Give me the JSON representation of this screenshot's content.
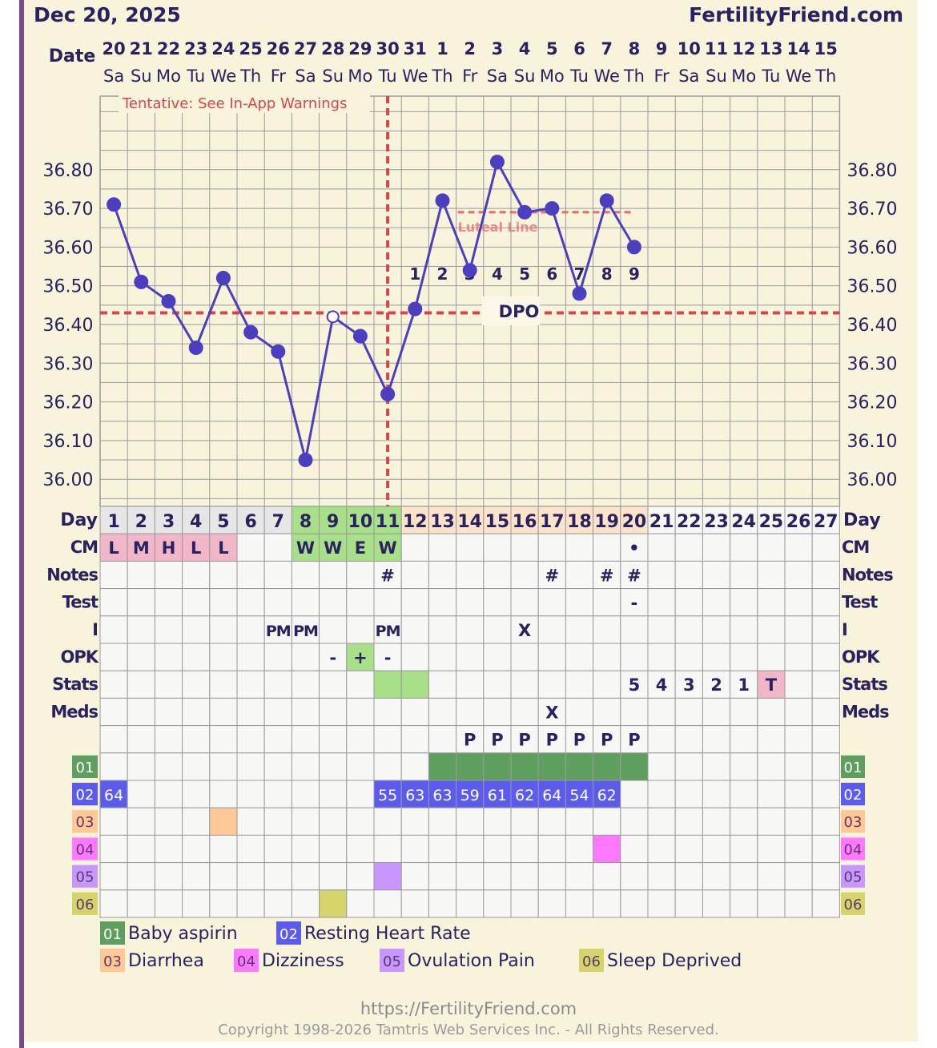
{
  "header": {
    "date": "Dec 20, 2025",
    "brand": "FertilityFriend.com"
  },
  "colors": {
    "page_bg": "#f8f4dc",
    "grid": "#9a9a9a",
    "temp_line": "#4b3fc0",
    "coverline": "#d8444c",
    "label_text": "#2a2160",
    "cm_pink": "#f2b6c9",
    "fertile_green": "#a8e08a",
    "luteal_peach": "#fde3c8",
    "menses_gray": "#e6e6e6",
    "cell_bg": "#f7f7f5",
    "cat01": "#5e9e5e",
    "cat02": "#5b5bf0",
    "cat03": "#ffc896",
    "cat04": "#ff78ff",
    "cat05": "#c896ff",
    "cat06": "#d4d46a",
    "stats_t": "#f2b6c9",
    "left_bar": "#7a4a86"
  },
  "date_row": {
    "label": "Date",
    "dates": [
      "20",
      "21",
      "22",
      "23",
      "24",
      "25",
      "26",
      "27",
      "28",
      "29",
      "30",
      "31",
      "1",
      "2",
      "3",
      "4",
      "5",
      "6",
      "7",
      "8",
      "9",
      "10",
      "11",
      "12",
      "13",
      "14",
      "15"
    ],
    "weekdays": [
      "Sa",
      "Su",
      "Mo",
      "Tu",
      "We",
      "Th",
      "Fr",
      "Sa",
      "Su",
      "Mo",
      "Tu",
      "We",
      "Th",
      "Fr",
      "Sa",
      "Su",
      "Mo",
      "Tu",
      "We",
      "Th",
      "Fr",
      "Sa",
      "Su",
      "Mo",
      "Tu",
      "We",
      "Th"
    ]
  },
  "chart_data": {
    "type": "line",
    "x": [
      1,
      2,
      3,
      4,
      5,
      6,
      7,
      8,
      9,
      10,
      11,
      12,
      13,
      14,
      15,
      16,
      17,
      18,
      19,
      20
    ],
    "series": [
      {
        "values": [
          36.71,
          36.51,
          36.46,
          36.34,
          36.52,
          36.38,
          36.33,
          36.05,
          36.42,
          36.37,
          36.22,
          36.44,
          36.72,
          36.54,
          36.82,
          36.69,
          36.7,
          36.48,
          36.72,
          36.6
        ],
        "open_points": [
          9
        ]
      }
    ],
    "ylim": [
      35.93,
      36.99
    ],
    "yticks": [
      "36.80",
      "36.70",
      "36.60",
      "36.50",
      "36.40",
      "36.30",
      "36.20",
      "36.10",
      "36.00"
    ],
    "ytick_values": [
      36.8,
      36.7,
      36.6,
      36.5,
      36.4,
      36.3,
      36.2,
      36.1,
      36.0
    ],
    "coverline": 36.43,
    "ovulation_day": 11,
    "luteal_line": {
      "value": 36.69,
      "from_day": 14,
      "to_day": 20,
      "label": "Luteal Line"
    },
    "dpo": {
      "label": "DPO",
      "numbers": [
        "1",
        "2",
        "3",
        "4",
        "5",
        "6",
        "7",
        "8",
        "9"
      ],
      "start_day": 12
    },
    "warning": "Tentative: See In-App Warnings",
    "grid": true
  },
  "table": {
    "day_label": "Day",
    "days": [
      "1",
      "2",
      "3",
      "4",
      "5",
      "6",
      "7",
      "8",
      "9",
      "10",
      "11",
      "12",
      "13",
      "14",
      "15",
      "16",
      "17",
      "18",
      "19",
      "20",
      "21",
      "22",
      "23",
      "24",
      "25",
      "26",
      "27"
    ],
    "rows": [
      {
        "label": "CM",
        "cells": [
          "L",
          "M",
          "H",
          "L",
          "L",
          "",
          "",
          "W",
          "W",
          "E",
          "W",
          "",
          "",
          "",
          "",
          "",
          "",
          "",
          "",
          "•",
          "",
          "",
          "",
          "",
          "",
          "",
          ""
        ]
      },
      {
        "label": "Notes",
        "cells": [
          "",
          "",
          "",
          "",
          "",
          "",
          "",
          "",
          "",
          "",
          "#",
          "",
          "",
          "",
          "",
          "",
          "#",
          "",
          "#",
          "#",
          "",
          "",
          "",
          "",
          "",
          "",
          ""
        ]
      },
      {
        "label": "Test",
        "cells": [
          "",
          "",
          "",
          "",
          "",
          "",
          "",
          "",
          "",
          "",
          "",
          "",
          "",
          "",
          "",
          "",
          "",
          "",
          "",
          "-",
          "",
          "",
          "",
          "",
          "",
          "",
          ""
        ]
      },
      {
        "label": "I",
        "cells": [
          "",
          "",
          "",
          "",
          "",
          "",
          "PM",
          "PM",
          "",
          "",
          "PM",
          "",
          "",
          "",
          "",
          "X",
          "",
          "",
          "",
          "",
          "",
          "",
          "",
          "",
          "",
          "",
          ""
        ]
      },
      {
        "label": "OPK",
        "cells": [
          "",
          "",
          "",
          "",
          "",
          "",
          "",
          "",
          "-",
          "+",
          "-",
          "",
          "",
          "",
          "",
          "",
          "",
          "",
          "",
          "",
          "",
          "",
          "",
          "",
          "",
          "",
          ""
        ]
      },
      {
        "label": "Stats",
        "cells": [
          "",
          "",
          "",
          "",
          "",
          "",
          "",
          "",
          "",
          "",
          "",
          "",
          "",
          "",
          "",
          "",
          "",
          "",
          "",
          "5",
          "4",
          "3",
          "2",
          "1",
          "T",
          "",
          ""
        ]
      },
      {
        "label": "Meds",
        "cells": [
          "",
          "",
          "",
          "",
          "",
          "",
          "",
          "",
          "",
          "",
          "",
          "",
          "",
          "",
          "",
          "",
          "X",
          "",
          "",
          "",
          "",
          "",
          "",
          "",
          "",
          "",
          ""
        ]
      },
      {
        "label": "",
        "cells": [
          "",
          "",
          "",
          "",
          "",
          "",
          "",
          "",
          "",
          "",
          "",
          "",
          "",
          "P",
          "P",
          "P",
          "P",
          "P",
          "P",
          "P",
          "",
          "",
          "",
          "",
          "",
          "",
          ""
        ]
      }
    ],
    "categories": [
      {
        "code": "01",
        "name": "Baby aspirin",
        "days": [
          13,
          14,
          15,
          16,
          17,
          18,
          19,
          20
        ],
        "values": {}
      },
      {
        "code": "02",
        "name": "Resting Heart Rate",
        "days": [
          1,
          11,
          12,
          13,
          14,
          15,
          16,
          17,
          18,
          19
        ],
        "values": {
          "1": "64",
          "11": "55",
          "12": "63",
          "13": "63",
          "14": "59",
          "15": "61",
          "16": "62",
          "17": "64",
          "18": "54",
          "19": "62"
        }
      },
      {
        "code": "03",
        "name": "Diarrhea",
        "days": [
          5
        ],
        "values": {}
      },
      {
        "code": "04",
        "name": "Dizziness",
        "days": [
          19
        ],
        "values": {}
      },
      {
        "code": "05",
        "name": "Ovulation Pain",
        "days": [
          11
        ],
        "values": {}
      },
      {
        "code": "06",
        "name": "Sleep Deprived",
        "days": [
          9
        ],
        "values": {}
      }
    ]
  },
  "footer": {
    "url": "https://FertilityFriend.com",
    "copyright": "Copyright 1998-2026 Tamtris Web Services Inc. - All Rights Reserved."
  }
}
